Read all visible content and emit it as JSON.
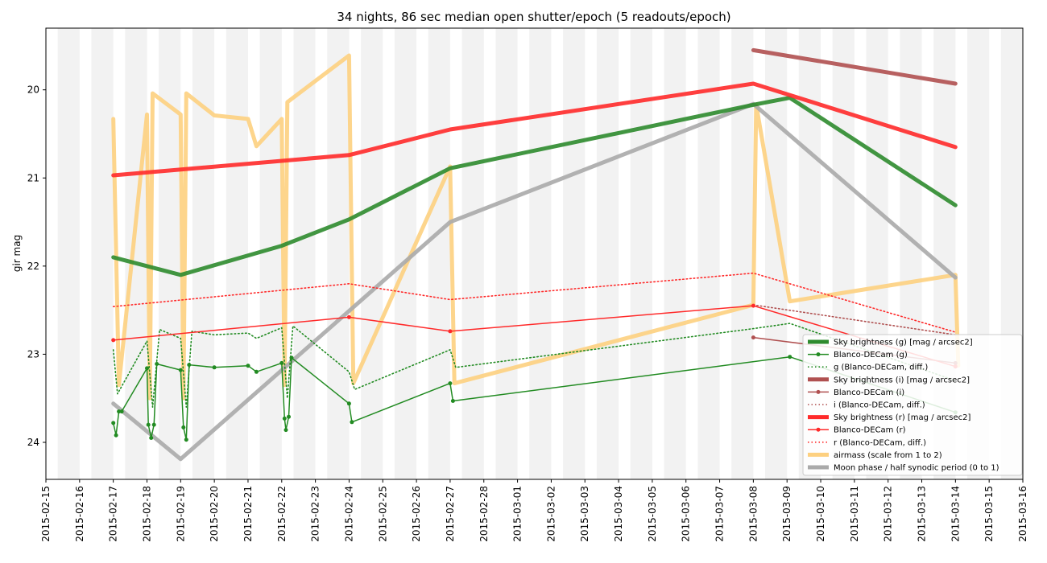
{
  "chart_data": {
    "type": "line",
    "title": "34 nights, 86 sec median open shutter/epoch (5 readouts/epoch)",
    "xlabel": "",
    "ylabel": "gir mag",
    "xlim": [
      "2015-02-15T00:00",
      "2015-03-16T00:00"
    ],
    "ylim": [
      24.42,
      19.3
    ],
    "y_inverted": true,
    "x_ticks": [
      "2015-02-15",
      "2015-02-16",
      "2015-02-17",
      "2015-02-18",
      "2015-02-19",
      "2015-02-20",
      "2015-02-21",
      "2015-02-22",
      "2015-02-23",
      "2015-02-24",
      "2015-02-25",
      "2015-02-26",
      "2015-02-27",
      "2015-02-28",
      "2015-03-01",
      "2015-03-02",
      "2015-03-03",
      "2015-03-04",
      "2015-03-05",
      "2015-03-06",
      "2015-03-07",
      "2015-03-08",
      "2015-03-09",
      "2015-03-10",
      "2015-03-11",
      "2015-03-12",
      "2015-03-13",
      "2015-03-14",
      "2015-03-15",
      "2015-03-16"
    ],
    "y_ticks": [
      "20",
      "21",
      "22",
      "23",
      "24"
    ],
    "night_shading": "alternating light gray vertical bands (one per night)",
    "legend_position": "lower-right",
    "series": [
      {
        "name": "Sky brightness (g) [mag / arcsec2]",
        "color": "#2e8b2e",
        "style": "thick",
        "x": [
          "2015-02-17T00:00",
          "2015-02-19T00:00",
          "2015-02-22T00:00",
          "2015-02-24T00:00",
          "2015-02-27T00:00",
          "2015-03-08T00:00",
          "2015-03-09T02:00",
          "2015-03-14T00:00"
        ],
        "y": [
          21.9,
          22.1,
          21.77,
          21.47,
          20.89,
          20.17,
          20.09,
          21.31
        ]
      },
      {
        "name": "Blanco-DECam (g)",
        "color": "#228b22",
        "style": "line-marker",
        "x": [
          "2015-02-17T00:00",
          "2015-02-17T02:00",
          "2015-02-17T04:00",
          "2015-02-17T06:00",
          "2015-02-18T00:00",
          "2015-02-18T01:00",
          "2015-02-18T03:00",
          "2015-02-18T05:00",
          "2015-02-18T07:00",
          "2015-02-19T00:00",
          "2015-02-19T02:00",
          "2015-02-19T04:00",
          "2015-02-19T06:00",
          "2015-02-20T00:00",
          "2015-02-21T00:00",
          "2015-02-21T06:00",
          "2015-02-22T00:00",
          "2015-02-22T02:00",
          "2015-02-22T03:00",
          "2015-02-22T05:00",
          "2015-02-22T07:00",
          "2015-02-24T00:00",
          "2015-02-24T02:00",
          "2015-02-27T00:00",
          "2015-02-27T02:00",
          "2015-03-09T02:00",
          "2015-03-14T00:00"
        ],
        "y": [
          23.78,
          23.92,
          23.65,
          23.65,
          23.16,
          23.8,
          23.95,
          23.8,
          23.11,
          23.18,
          23.83,
          23.97,
          23.12,
          23.15,
          23.13,
          23.2,
          23.1,
          23.73,
          23.86,
          23.71,
          23.04,
          23.56,
          23.77,
          23.33,
          23.53,
          23.03,
          23.66
        ]
      },
      {
        "name": "g (Blanco-DECam, diff.)",
        "color": "#228b22",
        "style": "dotted",
        "x": [
          "2015-02-17T00:00",
          "2015-02-17T03:00",
          "2015-02-18T00:00",
          "2015-02-18T04:00",
          "2015-02-18T09:00",
          "2015-02-19T00:00",
          "2015-02-19T04:00",
          "2015-02-19T08:00",
          "2015-02-20T00:00",
          "2015-02-21T00:00",
          "2015-02-21T06:00",
          "2015-02-22T00:00",
          "2015-02-22T04:00",
          "2015-02-22T08:00",
          "2015-02-24T00:00",
          "2015-02-24T04:00",
          "2015-02-27T00:00",
          "2015-02-27T04:00",
          "2015-03-08T00:00",
          "2015-03-09T02:00",
          "2015-03-14T00:00"
        ],
        "y": [
          22.95,
          23.45,
          22.85,
          23.6,
          22.72,
          22.82,
          23.6,
          22.74,
          22.78,
          22.76,
          22.82,
          22.7,
          23.5,
          22.68,
          23.2,
          23.4,
          22.95,
          23.15,
          22.71,
          22.65,
          23.3
        ]
      },
      {
        "name": "Sky brightness (i) [mag / arcsec2]",
        "color": "#b05050",
        "style": "thick",
        "x": [
          "2015-03-08T00:00",
          "2015-03-14T00:00"
        ],
        "y": [
          19.55,
          19.93
        ]
      },
      {
        "name": "Blanco-DECam (i)",
        "color": "#b05050",
        "style": "line-marker",
        "x": [
          "2015-03-08T00:00",
          "2015-03-14T00:00"
        ],
        "y": [
          22.81,
          23.1
        ]
      },
      {
        "name": "i (Blanco-DECam, diff.)",
        "color": "#b05050",
        "style": "dotted",
        "x": [
          "2015-03-08T00:00",
          "2015-03-14T00:00"
        ],
        "y": [
          22.44,
          22.78
        ]
      },
      {
        "name": "Sky brightness (r) [mag / arcsec2]",
        "color": "#ff2a2a",
        "style": "thick",
        "x": [
          "2015-02-17T00:00",
          "2015-02-24T00:00",
          "2015-02-27T00:00",
          "2015-03-08T00:00",
          "2015-03-14T00:00"
        ],
        "y": [
          20.97,
          20.74,
          20.45,
          19.93,
          20.65
        ]
      },
      {
        "name": "Blanco-DECam (r)",
        "color": "#ff2a2a",
        "style": "line-marker",
        "x": [
          "2015-02-17T00:00",
          "2015-02-24T00:00",
          "2015-02-27T00:00",
          "2015-03-08T00:00",
          "2015-03-14T00:00"
        ],
        "y": [
          22.84,
          22.58,
          22.74,
          22.45,
          23.14
        ]
      },
      {
        "name": "r (Blanco-DECam, diff.)",
        "color": "#ff2a2a",
        "style": "dotted",
        "x": [
          "2015-02-17T00:00",
          "2015-02-24T00:00",
          "2015-02-27T00:00",
          "2015-03-08T00:00",
          "2015-03-14T00:00"
        ],
        "y": [
          22.46,
          22.2,
          22.38,
          22.08,
          22.75
        ]
      },
      {
        "name": "airmass (scale from 1 to 2)",
        "color": "#fdd080",
        "style": "thick",
        "x": [
          "2015-02-17T00:00",
          "2015-02-17T04:00",
          "2015-02-18T00:00",
          "2015-02-18T02:00",
          "2015-02-18T04:00",
          "2015-02-19T00:00",
          "2015-02-19T02:00",
          "2015-02-19T04:00",
          "2015-02-20T00:00",
          "2015-02-21T00:00",
          "2015-02-21T06:00",
          "2015-02-22T00:00",
          "2015-02-22T02:00",
          "2015-02-22T04:00",
          "2015-02-24T00:00",
          "2015-02-24T03:00",
          "2015-02-27T00:00",
          "2015-02-27T03:00",
          "2015-03-08T00:00",
          "2015-03-08T02:00",
          "2015-03-09T02:00",
          "2015-03-14T00:00",
          "2015-03-14T02:00"
        ],
        "y": [
          20.33,
          23.35,
          20.28,
          23.5,
          20.04,
          20.28,
          23.5,
          20.04,
          20.29,
          20.33,
          20.64,
          20.33,
          23.35,
          20.14,
          19.61,
          23.33,
          20.87,
          23.33,
          22.44,
          20.17,
          22.4,
          22.1,
          23.13
        ]
      },
      {
        "name": "Moon phase / half synodic period (0 to 1)",
        "color": "#aaaaaa",
        "style": "thick",
        "x": [
          "2015-02-17T00:00",
          "2015-02-19T00:00",
          "2015-02-27T00:00",
          "2015-03-08T00:00",
          "2015-03-14T00:00"
        ],
        "y": [
          23.56,
          24.19,
          21.5,
          20.16,
          22.13
        ]
      }
    ]
  }
}
